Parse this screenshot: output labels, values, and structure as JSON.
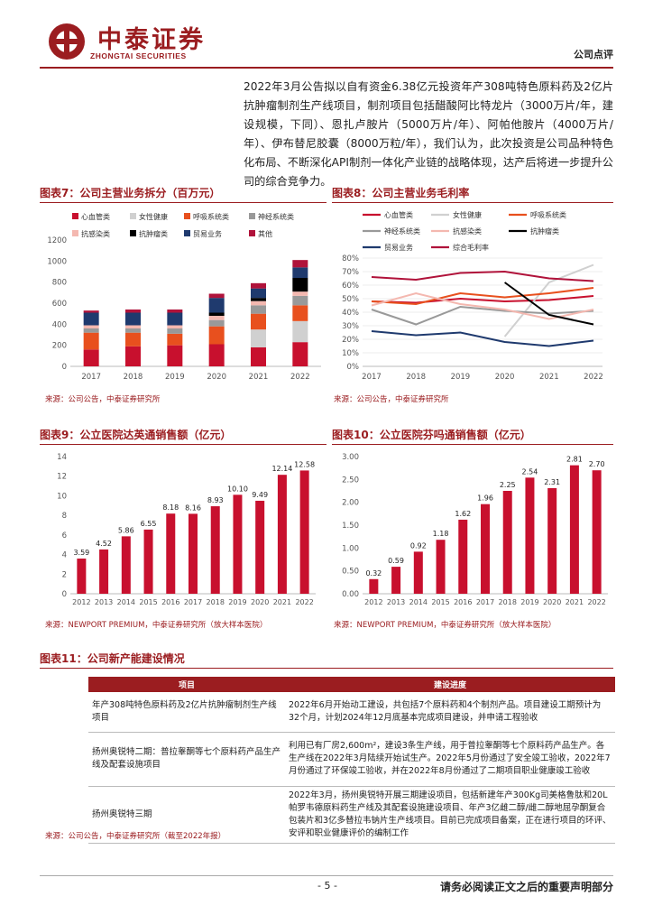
{
  "header": {
    "logo_cn": "中泰证券",
    "logo_en": "ZHONGTAI SECURITIES",
    "doc_type": "公司点评"
  },
  "body_paragraph": "2022年3月公告拟以自有资金6.38亿元投资年产308吨特色原料药及2亿片抗肿瘤制剂生产线项目，制剂项目包括醋酸阿比特龙片（3000万片/年，建设规模，下同）、恩扎卢胺片（5000万片/年）、阿帕他胺片（4000万片/年）、伊布替尼胶囊（8000万粒/年），我们认为，此次投资是公司品种特色化布局、不断深化API制剂一体化产业链的战略体现，达产后将进一步提升公司的综合竞争力。",
  "fig7": {
    "title": "图表7：公司主营业务拆分（百万元）",
    "source": "来源：公司公告，中泰证券研究所",
    "chart_data": {
      "type": "bar",
      "stacked": true,
      "categories": [
        "2017",
        "2018",
        "2019",
        "2020",
        "2021",
        "2022"
      ],
      "ylim": [
        0,
        1200
      ],
      "yticks": [
        0,
        200,
        400,
        600,
        800,
        1000,
        1200
      ],
      "series": [
        {
          "name": "心血管类",
          "color": "#c8102e",
          "values": [
            160,
            190,
            200,
            210,
            180,
            230
          ]
        },
        {
          "name": "女性健康",
          "color": "#d0d0d0",
          "values": [
            0,
            0,
            0,
            0,
            170,
            200
          ]
        },
        {
          "name": "呼吸系统类",
          "color": "#e8501e",
          "values": [
            160,
            130,
            110,
            170,
            150,
            150
          ]
        },
        {
          "name": "神经系统类",
          "color": "#999999",
          "values": [
            40,
            40,
            50,
            60,
            80,
            90
          ]
        },
        {
          "name": "抗感染类",
          "color": "#f4b8b0",
          "values": [
            30,
            30,
            30,
            40,
            40,
            40
          ]
        },
        {
          "name": "抗肿瘤类",
          "color": "#000000",
          "values": [
            0,
            0,
            0,
            30,
            30,
            130
          ]
        },
        {
          "name": "贸易业务",
          "color": "#1f3a6e",
          "values": [
            120,
            120,
            120,
            140,
            90,
            100
          ]
        },
        {
          "name": "其他",
          "color": "#b0123a",
          "values": [
            20,
            30,
            30,
            40,
            50,
            70
          ]
        }
      ],
      "legend_placement": "top"
    }
  },
  "fig8": {
    "title": "图表8：公司主营业务毛利率",
    "source": "来源：公司公告，中泰证券研究所",
    "chart_data": {
      "type": "line",
      "x": [
        "2017",
        "2018",
        "2019",
        "2020",
        "2021",
        "2022"
      ],
      "ylim": [
        0,
        80
      ],
      "yticks": [
        "0%",
        "10%",
        "20%",
        "30%",
        "40%",
        "50%",
        "60%",
        "70%",
        "80%"
      ],
      "series": [
        {
          "name": "心血管类",
          "color": "#c8102e",
          "values": [
            48,
            47,
            50,
            48,
            49,
            52
          ]
        },
        {
          "name": "女性健康",
          "color": "#d0d0d0",
          "values": [
            null,
            null,
            null,
            22,
            62,
            75
          ]
        },
        {
          "name": "呼吸系统类",
          "color": "#e8501e",
          "values": [
            48,
            46,
            54,
            51,
            54,
            58
          ]
        },
        {
          "name": "神经系统类",
          "color": "#999999",
          "values": [
            42,
            31,
            44,
            41,
            39,
            41
          ]
        },
        {
          "name": "抗感染类",
          "color": "#f4b8b0",
          "values": [
            45,
            54,
            46,
            42,
            35,
            42
          ]
        },
        {
          "name": "抗肿瘤类",
          "color": "#000000",
          "values": [
            null,
            null,
            null,
            62,
            38,
            31
          ]
        },
        {
          "name": "贸易业务",
          "color": "#1f3a6e",
          "values": [
            26,
            23,
            25,
            18,
            15,
            19
          ]
        },
        {
          "name": "综合毛利率",
          "color": "#b0123a",
          "values": [
            66,
            64,
            69,
            70,
            65,
            63
          ]
        }
      ],
      "legend_placement": "top"
    }
  },
  "fig9": {
    "title": "图表9：公立医院达英通销售额（亿元）",
    "source": "来源：NEWPORT PREMIUM，中泰证券研究所（放大样本医院）",
    "chart_data": {
      "type": "bar",
      "categories": [
        "2012",
        "2013",
        "2014",
        "2015",
        "2016",
        "2017",
        "2018",
        "2019",
        "2020",
        "2021",
        "2022"
      ],
      "values": [
        3.59,
        4.52,
        5.86,
        6.55,
        8.18,
        8.16,
        8.93,
        10.1,
        9.49,
        12.14,
        12.58
      ],
      "labels": [
        "3.59",
        "4.52",
        "5.86",
        "6.55",
        "8.18",
        "8.16",
        "8.93",
        "10.10",
        "9.49",
        "12.14",
        "12.58"
      ],
      "ylim": [
        0,
        14
      ],
      "yticks": [
        0,
        2,
        4,
        6,
        8,
        10,
        12,
        14
      ]
    }
  },
  "fig10": {
    "title": "图表10：公立医院芬吗通销售额（亿元）",
    "source": "来源：NEWPORT PREMIUM，中泰证券研究所（放大样本医院）",
    "chart_data": {
      "type": "bar",
      "categories": [
        "2012",
        "2013",
        "2014",
        "2015",
        "2016",
        "2017",
        "2018",
        "2019",
        "2020",
        "2021",
        "2022"
      ],
      "values": [
        0.32,
        0.59,
        0.92,
        1.18,
        1.62,
        1.96,
        2.25,
        2.54,
        2.31,
        2.81,
        2.7
      ],
      "labels": [
        "0.32",
        "0.59",
        "0.92",
        "1.18",
        "1.62",
        "1.96",
        "2.25",
        "2.54",
        "2.31",
        "2.81",
        "2.70"
      ],
      "ylim": [
        0,
        3.0
      ],
      "yticks": [
        "0.00",
        "0.50",
        "1.00",
        "1.50",
        "2.00",
        "2.50",
        "3.00"
      ]
    }
  },
  "fig11": {
    "title": "图表11：公司新产能建设情况",
    "source": "来源：公司公告，中泰证券研究所（截至2022年报）",
    "col_project": "项目",
    "col_progress": "建设进度",
    "rows": [
      {
        "project": "年产308吨特色原料药及2亿片抗肿瘤制剂生产线项目",
        "progress": "2022年6月开始动工建设，共包括7个原料药和4个制剂产品。项目建设工期预计为32个月，计划2024年12月底基本完成项目建设，并申请工程验收"
      },
      {
        "project": "扬州奥锐特二期：普拉睾酮等七个原料药产品生产线及配套设施项目",
        "progress": "利用已有厂房2,600m²，建设3条生产线，用于普拉睾酮等七个原料药产品生产。各生产线在2022年3月陆续开始试生产。2022年5月份通过了安全竣工验收，2022年7月份通过了环保竣工验收，并在2022年8月份通过了二期项目职业健康竣工验收"
      },
      {
        "project": "扬州奥锐特三期",
        "progress": "2022年3月，扬州奥锐特开展三期建设项目，包括新建年产300Kg司美格鲁肽和20L帕罗韦德原料药生产线及其配套设施建设项目、年产3亿雌二醇/雌二醇地屈孕酮复合包装片和3亿多替拉韦钠片生产线项目。目前已完成项目备案，正在进行项目的环评、安评和职业健康评价的编制工作"
      }
    ]
  },
  "footer": {
    "page": "- 5 -",
    "disclaimer": "请务必阅读正文之后的重要声明部分"
  }
}
